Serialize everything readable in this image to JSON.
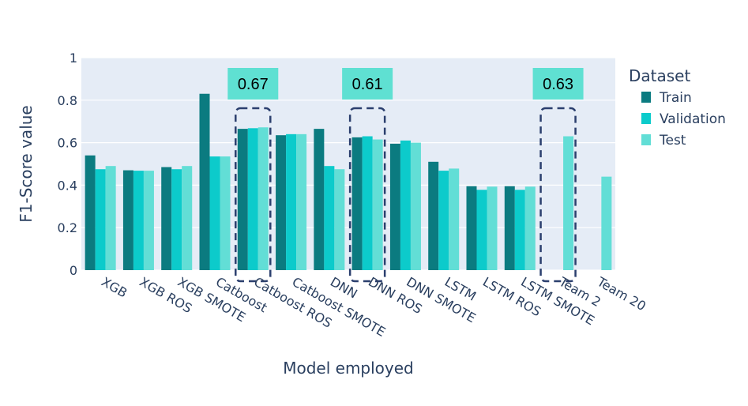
{
  "chart_data": {
    "type": "bar",
    "xlabel": "Model employed",
    "ylabel": "F1-Score value",
    "ylim": [
      0,
      1
    ],
    "yticks": [
      "0",
      "0.2",
      "0.4",
      "0.6",
      "0.8",
      "1"
    ],
    "grid": true,
    "legend_title": "Dataset",
    "legend_position": "top-right",
    "categories": [
      "XGB",
      "XGB ROS",
      "XGB SMOTE",
      "Catboost",
      "Catboost ROS",
      "Catboost SMOTE",
      "DNN",
      "DNN ROS",
      "DNN SMOTE",
      "LSTM",
      "LSTM ROS",
      "LSTM SMOTE",
      "Team 2",
      "Team 20"
    ],
    "series": [
      {
        "name": "Train",
        "color": "#0b7b80",
        "values": [
          0.54,
          0.47,
          0.485,
          0.83,
          null,
          0.635,
          0.665,
          null,
          0.595,
          0.51,
          0.395,
          0.395,
          null,
          null
        ]
      },
      {
        "name": "Validation",
        "color": "#0ccbcb",
        "values": [
          0.475,
          0.468,
          0.475,
          0.535,
          null,
          0.64,
          0.49,
          null,
          0.61,
          0.468,
          0.378,
          0.378,
          null,
          null
        ]
      },
      {
        "name": "Test",
        "color": "#62ded6",
        "values": [
          0.49,
          0.468,
          0.49,
          0.535,
          null,
          0.64,
          0.475,
          null,
          0.6,
          0.478,
          0.393,
          0.393,
          0.63,
          0.44
        ]
      }
    ],
    "annotations": [
      {
        "category": "Catboost ROS",
        "text": "0.67",
        "color": "#5fe0d2"
      },
      {
        "category": "DNN ROS",
        "text": "0.61",
        "color": "#5fe0d2"
      },
      {
        "category": "Team 2",
        "text": "0.63",
        "color": "#5fe0d2"
      }
    ],
    "highlighted_values": {
      "Catboost ROS": {
        "Train": 0.665,
        "Validation": 0.668,
        "Test": 0.672
      },
      "DNN ROS": {
        "Train": 0.625,
        "Validation": 0.63,
        "Test": 0.615
      }
    }
  }
}
